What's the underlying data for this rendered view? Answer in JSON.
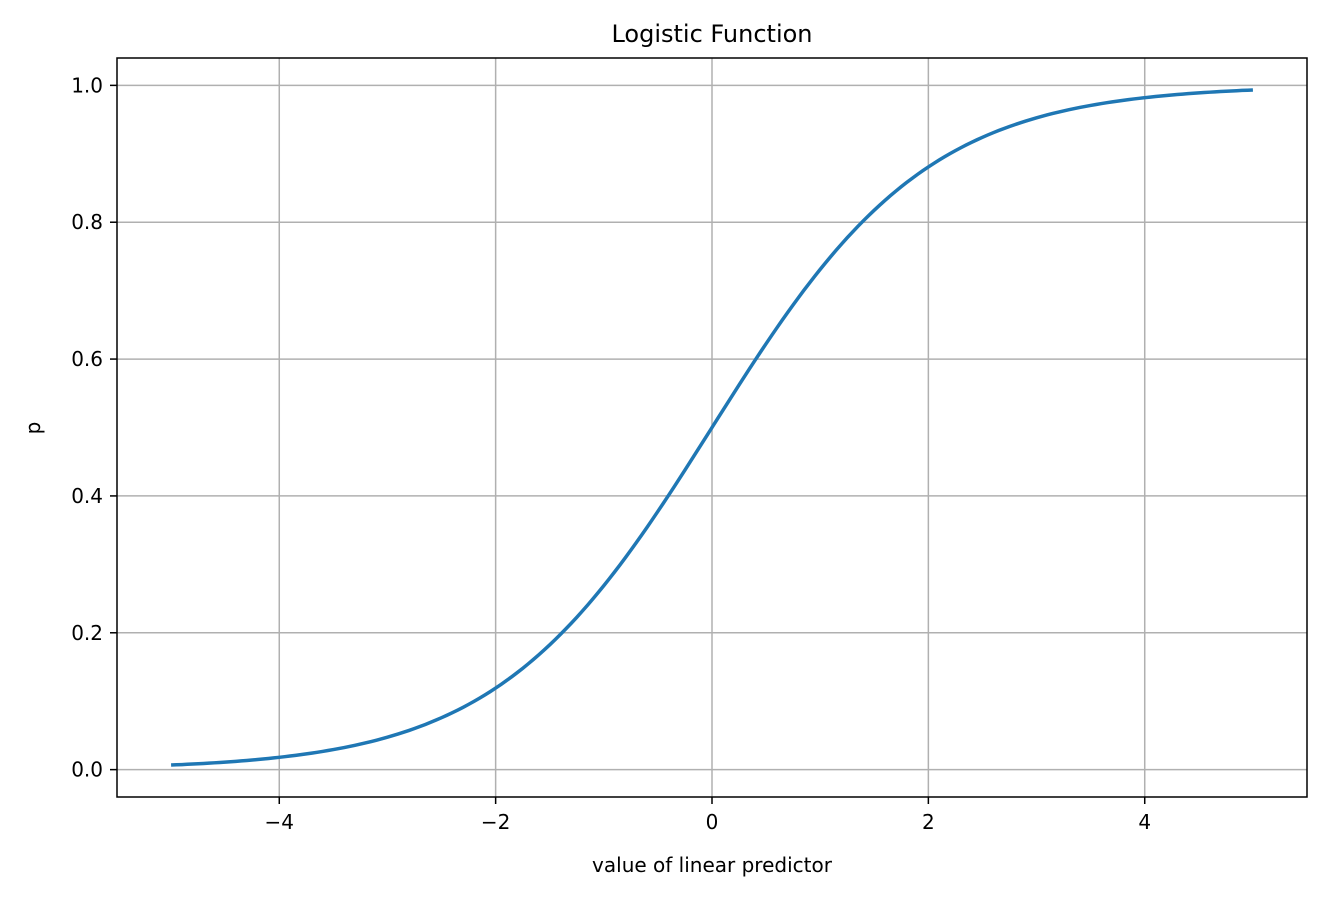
{
  "chart_data": {
    "type": "line",
    "title": "Logistic Function",
    "xlabel": "value of linear predictor",
    "ylabel": "p",
    "xlim": [
      -5.5,
      5.5
    ],
    "ylim": [
      -0.04,
      1.04
    ],
    "xticks": [
      -4,
      -2,
      0,
      2,
      4
    ],
    "xtick_labels": [
      "−4",
      "−2",
      "0",
      "2",
      "4"
    ],
    "yticks": [
      0.0,
      0.2,
      0.4,
      0.6,
      0.8,
      1.0
    ],
    "ytick_labels": [
      "0.0",
      "0.2",
      "0.4",
      "0.6",
      "0.8",
      "1.0"
    ],
    "grid": true,
    "legend": "none",
    "line_color": "#1f77b4",
    "grid_color": "#b0b0b0",
    "series": [
      {
        "x": [
          -5.0,
          -4.5,
          -4.0,
          -3.5,
          -3.0,
          -2.5,
          -2.0,
          -1.5,
          -1.0,
          -0.5,
          0.0,
          0.5,
          1.0,
          1.5,
          2.0,
          2.5,
          3.0,
          3.5,
          4.0,
          4.5,
          5.0
        ],
        "y": [
          0.0067,
          0.011,
          0.018,
          0.0293,
          0.0474,
          0.0759,
          0.1192,
          0.1824,
          0.2689,
          0.3775,
          0.5,
          0.6225,
          0.7311,
          0.8176,
          0.8808,
          0.9241,
          0.9526,
          0.9707,
          0.982,
          0.989,
          0.9933
        ]
      }
    ]
  }
}
